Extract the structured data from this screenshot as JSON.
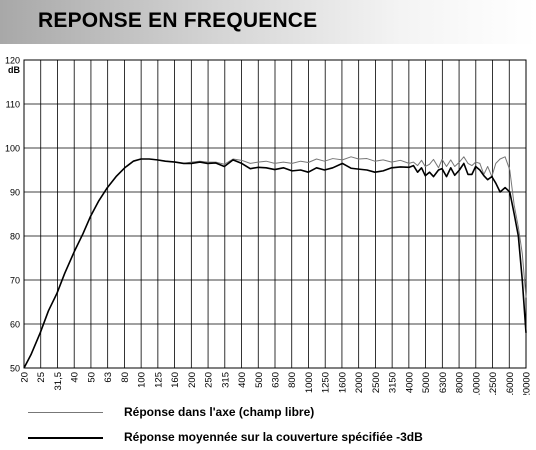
{
  "title": "REPONSE EN FREQUENCE",
  "chart_data": {
    "type": "line",
    "ylabel": "dB",
    "xlabel": "",
    "ylim": [
      50,
      120
    ],
    "y_ticks": [
      50,
      60,
      70,
      80,
      90,
      100,
      110,
      120
    ],
    "x_scale": "log",
    "x_ticks": [
      "20",
      "25",
      "31,5",
      "40",
      "50",
      "63",
      "80",
      "100",
      "125",
      "160",
      "200",
      "250",
      "315",
      "400",
      "500",
      "630",
      "800",
      "1000",
      "1250",
      "1600",
      "2000",
      "2500",
      "3150",
      "4000",
      "5000",
      "6300",
      "8000",
      "10000",
      "12500",
      "16000",
      "20000"
    ],
    "grid": true,
    "legend_position": "bottom",
    "series": [
      {
        "name": "Réponse dans l'axe (champ libre)",
        "color": "#777777",
        "x": [
          20,
          22,
          25,
          28,
          31.5,
          35,
          40,
          45,
          50,
          56,
          63,
          71,
          80,
          90,
          100,
          112,
          125,
          140,
          160,
          180,
          200,
          225,
          250,
          280,
          315,
          355,
          400,
          450,
          500,
          560,
          630,
          710,
          800,
          900,
          1000,
          1120,
          1250,
          1400,
          1600,
          1800,
          2000,
          2240,
          2500,
          2800,
          3150,
          3550,
          4000,
          4250,
          4500,
          4750,
          5000,
          5300,
          5600,
          6000,
          6300,
          6700,
          7100,
          7500,
          8000,
          8500,
          9000,
          9500,
          10000,
          10600,
          11200,
          11800,
          12500,
          13200,
          14000,
          15000,
          16000,
          17000,
          18000,
          19000,
          20000
        ],
        "values": [
          49.5,
          53,
          58,
          63,
          67,
          71.5,
          76.5,
          80.5,
          84.5,
          88,
          91,
          93.5,
          95.5,
          97,
          97.5,
          97.5,
          97.3,
          97,
          96.8,
          96.5,
          96.8,
          97,
          96.8,
          96.8,
          96.3,
          97.5,
          97.2,
          96.5,
          96.8,
          97,
          96.5,
          96.8,
          96.5,
          97,
          96.7,
          97.5,
          97,
          97.6,
          97.3,
          98,
          97.5,
          97.6,
          97,
          97.3,
          96.8,
          97.2,
          96.5,
          96.8,
          96,
          97.2,
          95.8,
          96.3,
          97.4,
          95.5,
          97.4,
          95.8,
          97.3,
          95.8,
          96.8,
          98,
          96.5,
          96,
          96.8,
          96.5,
          94,
          95.8,
          93.5,
          96.5,
          97.5,
          98,
          95,
          87,
          82,
          76,
          66
        ]
      },
      {
        "name": "Réponse moyennée sur la couverture spécifiée -3dB",
        "color": "#000000",
        "x": [
          20,
          22,
          25,
          28,
          31.5,
          35,
          40,
          45,
          50,
          56,
          63,
          71,
          80,
          90,
          100,
          112,
          125,
          140,
          160,
          180,
          200,
          225,
          250,
          280,
          315,
          355,
          400,
          450,
          500,
          560,
          630,
          710,
          800,
          900,
          1000,
          1120,
          1250,
          1400,
          1600,
          1800,
          2000,
          2240,
          2500,
          2800,
          3150,
          3550,
          4000,
          4250,
          4500,
          4750,
          5000,
          5300,
          5600,
          6000,
          6300,
          6700,
          7100,
          7500,
          8000,
          8500,
          9000,
          9500,
          10000,
          10600,
          11200,
          11800,
          12500,
          13200,
          14000,
          15000,
          16000,
          17000,
          18000,
          19000,
          20000
        ],
        "values": [
          49.5,
          53,
          58,
          63,
          67,
          71.5,
          76.5,
          80.5,
          84.5,
          88,
          91,
          93.5,
          95.5,
          97,
          97.5,
          97.5,
          97.3,
          97,
          96.8,
          96.5,
          96.5,
          96.8,
          96.5,
          96.6,
          95.8,
          97.3,
          96.5,
          95.3,
          95.6,
          95.5,
          95.1,
          95.5,
          94.8,
          95,
          94.5,
          95.5,
          95,
          95.5,
          96.5,
          95.4,
          95.2,
          95,
          94.5,
          94.8,
          95.5,
          95.7,
          95.6,
          96,
          94.5,
          95.5,
          93.7,
          94.5,
          93.5,
          95,
          95.3,
          93.5,
          95.5,
          93.8,
          95,
          96.5,
          94,
          94,
          95.8,
          95,
          93.7,
          92.8,
          93.5,
          92,
          90,
          91,
          90,
          85,
          80,
          70,
          58
        ]
      }
    ]
  }
}
